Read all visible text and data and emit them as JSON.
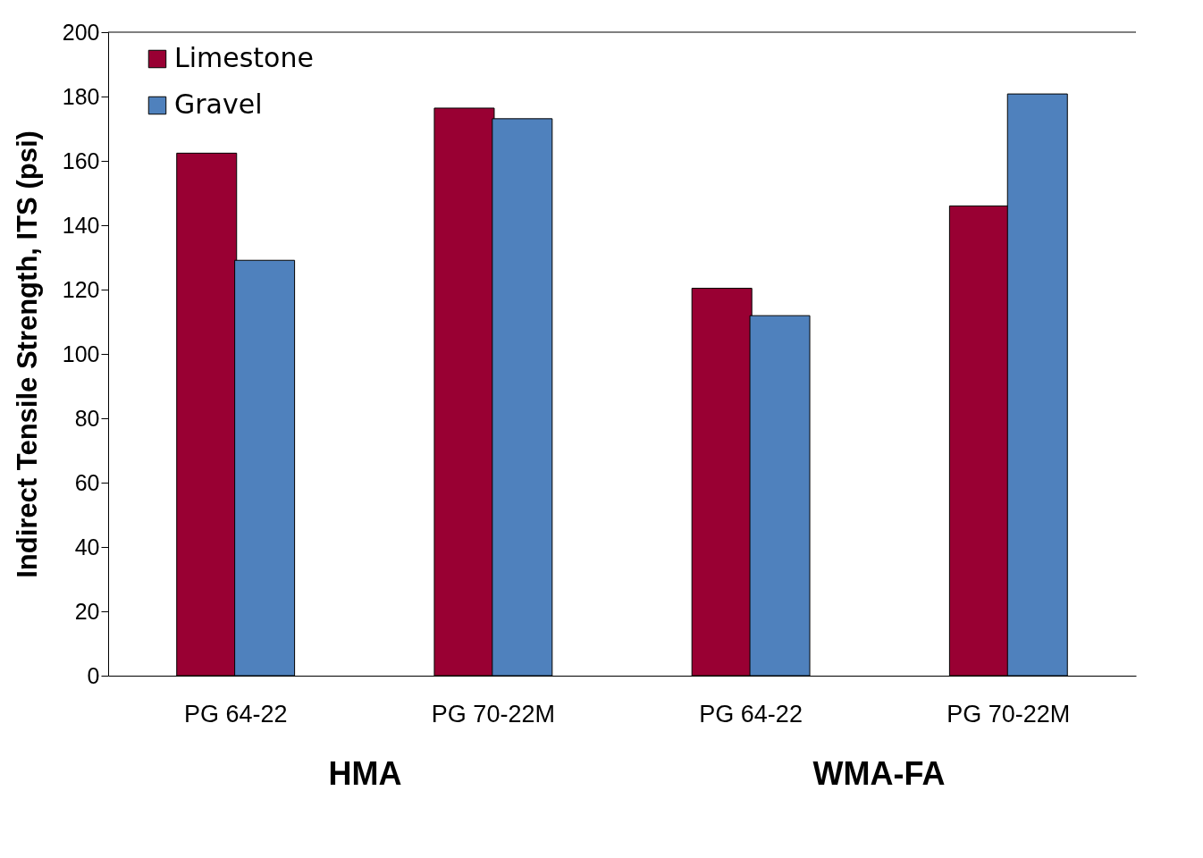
{
  "chart_data": {
    "type": "bar",
    "ylabel": "Indirect Tensile Strength, ITS (psi)",
    "categories": [
      "PG 64-22",
      "PG 70-22M",
      "PG 64-22",
      "PG 70-22M"
    ],
    "series": [
      {
        "name": "Limestone",
        "color": "#990033",
        "values": [
          162.4,
          176.4,
          120.4,
          146.0
        ]
      },
      {
        "name": "Gravel",
        "color": "#4f81bd",
        "values": [
          129.1,
          173.1,
          111.9,
          180.8
        ]
      }
    ],
    "ylim": [
      0,
      200
    ],
    "yticks": [
      0,
      20,
      40,
      60,
      80,
      100,
      120,
      140,
      160,
      180,
      200
    ],
    "grid": false,
    "legend": "top left",
    "annotations": [
      "HMA",
      "WMA-FA"
    ]
  }
}
